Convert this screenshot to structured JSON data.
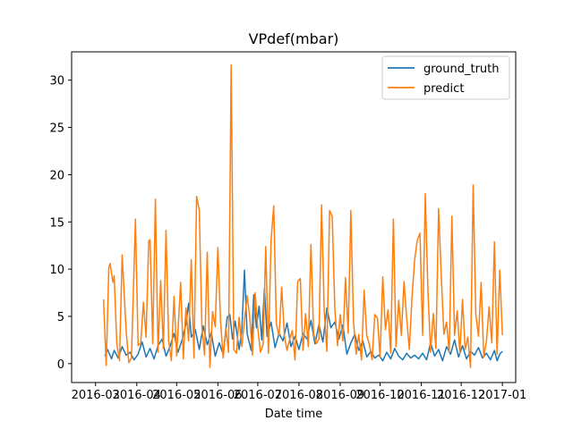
{
  "chart_data": {
    "type": "line",
    "title": "VPdef(mbar)",
    "xlabel": "Date time",
    "ylabel": "",
    "xlim": [
      "2016-02-12",
      "2017-01-11"
    ],
    "ylim": [
      -2,
      33
    ],
    "x_ticks": [
      "2016-03",
      "2016-04",
      "2016-05",
      "2016-06",
      "2016-07",
      "2016-08",
      "2016-09",
      "2016-10",
      "2016-11",
      "2016-12",
      "2017-01"
    ],
    "x_tick_dates": [
      "2016-03-01",
      "2016-04-01",
      "2016-05-01",
      "2016-06-01",
      "2016-07-01",
      "2016-08-01",
      "2016-09-01",
      "2016-10-01",
      "2016-11-01",
      "2016-12-01",
      "2017-01-01"
    ],
    "y_ticks": [
      0,
      5,
      10,
      15,
      20,
      25,
      30
    ],
    "grid": false,
    "legend_position": "top-right",
    "series": [
      {
        "name": "ground_truth",
        "color": "#1f77b4",
        "points": [
          [
            "2016-03-08",
            0.8
          ],
          [
            "2016-03-10",
            1.5
          ],
          [
            "2016-03-13",
            0.5
          ],
          [
            "2016-03-15",
            1.4
          ],
          [
            "2016-03-18",
            0.6
          ],
          [
            "2016-03-21",
            1.8
          ],
          [
            "2016-03-24",
            0.9
          ],
          [
            "2016-03-27",
            1.2
          ],
          [
            "2016-03-30",
            0.4
          ],
          [
            "2016-04-02",
            1.0
          ],
          [
            "2016-04-05",
            2.3
          ],
          [
            "2016-04-08",
            0.7
          ],
          [
            "2016-04-11",
            1.6
          ],
          [
            "2016-04-14",
            0.5
          ],
          [
            "2016-04-17",
            1.9
          ],
          [
            "2016-04-20",
            2.6
          ],
          [
            "2016-04-23",
            0.8
          ],
          [
            "2016-04-26",
            1.8
          ],
          [
            "2016-04-29",
            3.2
          ],
          [
            "2016-05-02",
            1.2
          ],
          [
            "2016-05-05",
            2.5
          ],
          [
            "2016-05-08",
            4.2
          ],
          [
            "2016-05-10",
            6.4
          ],
          [
            "2016-05-12",
            2.8
          ],
          [
            "2016-05-15",
            3.6
          ],
          [
            "2016-05-18",
            1.5
          ],
          [
            "2016-05-21",
            4.0
          ],
          [
            "2016-05-24",
            2.0
          ],
          [
            "2016-05-27",
            3.3
          ],
          [
            "2016-05-30",
            0.8
          ],
          [
            "2016-06-02",
            2.2
          ],
          [
            "2016-06-05",
            1.0
          ],
          [
            "2016-06-08",
            4.9
          ],
          [
            "2016-06-10",
            5.2
          ],
          [
            "2016-06-12",
            2.6
          ],
          [
            "2016-06-14",
            4.5
          ],
          [
            "2016-06-17",
            1.5
          ],
          [
            "2016-06-19",
            3.5
          ],
          [
            "2016-06-21",
            9.9
          ],
          [
            "2016-06-23",
            3.2
          ],
          [
            "2016-06-26",
            1.4
          ],
          [
            "2016-06-28",
            7.3
          ],
          [
            "2016-06-30",
            3.8
          ],
          [
            "2016-07-02",
            6.1
          ],
          [
            "2016-07-04",
            2.5
          ],
          [
            "2016-07-06",
            8.0
          ],
          [
            "2016-07-08",
            2.9
          ],
          [
            "2016-07-11",
            4.4
          ],
          [
            "2016-07-14",
            1.7
          ],
          [
            "2016-07-17",
            3.2
          ],
          [
            "2016-07-20",
            2.4
          ],
          [
            "2016-07-23",
            4.3
          ],
          [
            "2016-07-26",
            1.8
          ],
          [
            "2016-07-29",
            2.9
          ],
          [
            "2016-08-01",
            1.5
          ],
          [
            "2016-08-04",
            3.2
          ],
          [
            "2016-08-07",
            2.6
          ],
          [
            "2016-08-10",
            4.6
          ],
          [
            "2016-08-13",
            2.1
          ],
          [
            "2016-08-16",
            4.1
          ],
          [
            "2016-08-19",
            2.3
          ],
          [
            "2016-08-22",
            5.9
          ],
          [
            "2016-08-25",
            3.8
          ],
          [
            "2016-08-28",
            4.4
          ],
          [
            "2016-08-31",
            2.6
          ],
          [
            "2016-09-03",
            4.1
          ],
          [
            "2016-09-06",
            1.0
          ],
          [
            "2016-09-09",
            2.2
          ],
          [
            "2016-09-12",
            3.1
          ],
          [
            "2016-09-15",
            1.4
          ],
          [
            "2016-09-18",
            2.4
          ],
          [
            "2016-09-21",
            0.7
          ],
          [
            "2016-09-24",
            1.3
          ],
          [
            "2016-09-27",
            0.6
          ],
          [
            "2016-09-30",
            0.9
          ],
          [
            "2016-10-03",
            0.3
          ],
          [
            "2016-10-06",
            1.2
          ],
          [
            "2016-10-09",
            0.5
          ],
          [
            "2016-10-12",
            1.6
          ],
          [
            "2016-10-15",
            0.8
          ],
          [
            "2016-10-18",
            0.4
          ],
          [
            "2016-10-21",
            1.1
          ],
          [
            "2016-10-24",
            0.6
          ],
          [
            "2016-10-27",
            0.9
          ],
          [
            "2016-10-30",
            0.5
          ],
          [
            "2016-11-02",
            1.1
          ],
          [
            "2016-11-05",
            0.4
          ],
          [
            "2016-11-08",
            2.2
          ],
          [
            "2016-11-11",
            0.8
          ],
          [
            "2016-11-14",
            1.5
          ],
          [
            "2016-11-17",
            0.3
          ],
          [
            "2016-11-20",
            1.8
          ],
          [
            "2016-11-23",
            1.0
          ],
          [
            "2016-11-26",
            2.5
          ],
          [
            "2016-11-29",
            0.7
          ],
          [
            "2016-12-02",
            1.9
          ],
          [
            "2016-12-05",
            0.5
          ],
          [
            "2016-12-08",
            1.3
          ],
          [
            "2016-12-11",
            0.9
          ],
          [
            "2016-12-14",
            1.7
          ],
          [
            "2016-12-17",
            0.6
          ],
          [
            "2016-12-20",
            1.1
          ],
          [
            "2016-12-23",
            0.4
          ],
          [
            "2016-12-26",
            1.4
          ],
          [
            "2016-12-28",
            0.3
          ],
          [
            "2016-12-30",
            1.0
          ],
          [
            "2017-01-01",
            1.3
          ]
        ]
      },
      {
        "name": "predict",
        "color": "#ff7f0e",
        "points": [
          [
            "2016-03-07",
            6.8
          ],
          [
            "2016-03-09",
            -0.2
          ],
          [
            "2016-03-11",
            10.2
          ],
          [
            "2016-03-12",
            10.6
          ],
          [
            "2016-03-14",
            8.6
          ],
          [
            "2016-03-15",
            9.3
          ],
          [
            "2016-03-17",
            2.1
          ],
          [
            "2016-03-19",
            0.3
          ],
          [
            "2016-03-21",
            11.5
          ],
          [
            "2016-03-24",
            3.5
          ],
          [
            "2016-03-26",
            0.1
          ],
          [
            "2016-03-28",
            0.6
          ],
          [
            "2016-03-31",
            15.3
          ],
          [
            "2016-04-02",
            1.9
          ],
          [
            "2016-04-04",
            2.2
          ],
          [
            "2016-04-06",
            6.5
          ],
          [
            "2016-04-08",
            2.8
          ],
          [
            "2016-04-10",
            13.0
          ],
          [
            "2016-04-11",
            13.1
          ],
          [
            "2016-04-13",
            2.1
          ],
          [
            "2016-04-15",
            17.4
          ],
          [
            "2016-04-17",
            1.2
          ],
          [
            "2016-04-19",
            8.8
          ],
          [
            "2016-04-21",
            1.6
          ],
          [
            "2016-04-23",
            14.1
          ],
          [
            "2016-04-25",
            2.4
          ],
          [
            "2016-04-27",
            0.3
          ],
          [
            "2016-04-29",
            7.1
          ],
          [
            "2016-05-01",
            0.8
          ],
          [
            "2016-05-04",
            8.6
          ],
          [
            "2016-05-06",
            0.5
          ],
          [
            "2016-05-08",
            5.9
          ],
          [
            "2016-05-10",
            2.4
          ],
          [
            "2016-05-12",
            11.0
          ],
          [
            "2016-05-14",
            0.6
          ],
          [
            "2016-05-16",
            17.7
          ],
          [
            "2016-05-18",
            16.3
          ],
          [
            "2016-05-20",
            3.8
          ],
          [
            "2016-05-22",
            0.9
          ],
          [
            "2016-05-24",
            11.8
          ],
          [
            "2016-05-26",
            -0.4
          ],
          [
            "2016-05-28",
            5.5
          ],
          [
            "2016-05-30",
            3.9
          ],
          [
            "2016-06-01",
            12.3
          ],
          [
            "2016-06-03",
            4.5
          ],
          [
            "2016-06-05",
            0.6
          ],
          [
            "2016-06-07",
            3.7
          ],
          [
            "2016-06-09",
            1.2
          ],
          [
            "2016-06-11",
            31.6
          ],
          [
            "2016-06-13",
            1.5
          ],
          [
            "2016-06-15",
            1.1
          ],
          [
            "2016-06-17",
            4.9
          ],
          [
            "2016-06-19",
            1.8
          ],
          [
            "2016-06-21",
            4.6
          ],
          [
            "2016-06-23",
            7.2
          ],
          [
            "2016-06-25",
            4.9
          ],
          [
            "2016-06-27",
            0.9
          ],
          [
            "2016-06-29",
            7.5
          ],
          [
            "2016-07-01",
            3.8
          ],
          [
            "2016-07-03",
            1.2
          ],
          [
            "2016-07-05",
            2.0
          ],
          [
            "2016-07-07",
            12.4
          ],
          [
            "2016-07-09",
            1.1
          ],
          [
            "2016-07-11",
            13.0
          ],
          [
            "2016-07-13",
            16.7
          ],
          [
            "2016-07-15",
            4.2
          ],
          [
            "2016-07-17",
            2.9
          ],
          [
            "2016-07-19",
            8.1
          ],
          [
            "2016-07-21",
            3.0
          ],
          [
            "2016-07-23",
            1.4
          ],
          [
            "2016-07-25",
            2.6
          ],
          [
            "2016-07-27",
            3.5
          ],
          [
            "2016-07-29",
            0.4
          ],
          [
            "2016-07-31",
            8.7
          ],
          [
            "2016-08-02",
            9.0
          ],
          [
            "2016-08-04",
            1.4
          ],
          [
            "2016-08-06",
            5.3
          ],
          [
            "2016-08-08",
            1.8
          ],
          [
            "2016-08-10",
            12.6
          ],
          [
            "2016-08-12",
            3.2
          ],
          [
            "2016-08-14",
            2.1
          ],
          [
            "2016-08-16",
            2.6
          ],
          [
            "2016-08-18",
            16.8
          ],
          [
            "2016-08-20",
            5.5
          ],
          [
            "2016-08-22",
            1.3
          ],
          [
            "2016-08-24",
            16.2
          ],
          [
            "2016-08-26",
            15.6
          ],
          [
            "2016-08-28",
            5.7
          ],
          [
            "2016-08-30",
            1.9
          ],
          [
            "2016-09-01",
            5.2
          ],
          [
            "2016-09-03",
            2.4
          ],
          [
            "2016-09-05",
            9.1
          ],
          [
            "2016-09-07",
            3.2
          ],
          [
            "2016-09-09",
            16.2
          ],
          [
            "2016-09-11",
            4.5
          ],
          [
            "2016-09-13",
            1.0
          ],
          [
            "2016-09-15",
            3.1
          ],
          [
            "2016-09-17",
            0.4
          ],
          [
            "2016-09-19",
            7.8
          ],
          [
            "2016-09-21",
            3.0
          ],
          [
            "2016-09-23",
            2.0
          ],
          [
            "2016-09-25",
            0.4
          ],
          [
            "2016-09-27",
            5.2
          ],
          [
            "2016-09-29",
            4.8
          ],
          [
            "2016-10-01",
            0.7
          ],
          [
            "2016-10-03",
            9.2
          ],
          [
            "2016-10-05",
            3.6
          ],
          [
            "2016-10-07",
            5.7
          ],
          [
            "2016-10-09",
            1.1
          ],
          [
            "2016-10-11",
            15.3
          ],
          [
            "2016-10-13",
            1.8
          ],
          [
            "2016-10-15",
            6.7
          ],
          [
            "2016-10-17",
            3.0
          ],
          [
            "2016-10-19",
            8.7
          ],
          [
            "2016-10-21",
            4.8
          ],
          [
            "2016-10-23",
            1.5
          ],
          [
            "2016-10-25",
            7.0
          ],
          [
            "2016-10-27",
            11.0
          ],
          [
            "2016-10-29",
            13.1
          ],
          [
            "2016-10-31",
            13.8
          ],
          [
            "2016-11-02",
            3.0
          ],
          [
            "2016-11-04",
            18.0
          ],
          [
            "2016-11-06",
            7.6
          ],
          [
            "2016-11-08",
            1.2
          ],
          [
            "2016-11-10",
            5.3
          ],
          [
            "2016-11-12",
            1.6
          ],
          [
            "2016-11-14",
            16.4
          ],
          [
            "2016-11-16",
            9.3
          ],
          [
            "2016-11-18",
            3.1
          ],
          [
            "2016-11-20",
            4.4
          ],
          [
            "2016-11-22",
            1.2
          ],
          [
            "2016-11-24",
            15.6
          ],
          [
            "2016-11-26",
            3.0
          ],
          [
            "2016-11-28",
            5.6
          ],
          [
            "2016-11-30",
            1.1
          ],
          [
            "2016-12-02",
            6.8
          ],
          [
            "2016-12-04",
            1.5
          ],
          [
            "2016-12-06",
            2.8
          ],
          [
            "2016-12-08",
            -0.4
          ],
          [
            "2016-12-10",
            18.9
          ],
          [
            "2016-12-12",
            5.2
          ],
          [
            "2016-12-14",
            2.9
          ],
          [
            "2016-12-16",
            8.6
          ],
          [
            "2016-12-18",
            0.7
          ],
          [
            "2016-12-20",
            2.4
          ],
          [
            "2016-12-22",
            6.0
          ],
          [
            "2016-12-24",
            2.2
          ],
          [
            "2016-12-26",
            12.9
          ],
          [
            "2016-12-28",
            1.0
          ],
          [
            "2016-12-30",
            9.9
          ],
          [
            "2017-01-01",
            3.0
          ]
        ]
      }
    ]
  }
}
